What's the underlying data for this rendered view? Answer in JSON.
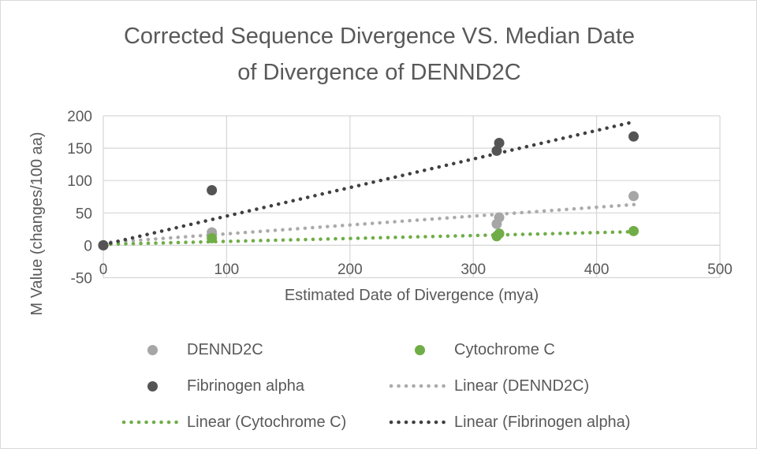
{
  "chart_data": {
    "type": "scatter",
    "title": "Corrected Sequence Divergence VS. Median Date of Divergence of DENND2C",
    "title_lines": [
      "Corrected Sequence Divergence VS. Median Date",
      "of Divergence of DENND2C"
    ],
    "xlabel": "Estimated Date of Divergence (mya)",
    "ylabel": "M Value (changes/100 aa)",
    "xlim": [
      0,
      500
    ],
    "ylim": [
      -50,
      200
    ],
    "x_ticks": [
      0,
      100,
      200,
      300,
      400,
      500
    ],
    "y_ticks": [
      -50,
      0,
      50,
      100,
      150,
      200
    ],
    "grid": true,
    "legend_position": "bottom",
    "series": [
      {
        "name": "DENND2C",
        "color": "#a6a6a6",
        "points": [
          [
            0,
            0
          ],
          [
            88,
            20
          ],
          [
            319,
            33
          ],
          [
            321,
            43
          ],
          [
            430,
            76
          ]
        ]
      },
      {
        "name": "Cytochrome C",
        "color": "#70ad47",
        "points": [
          [
            0,
            0
          ],
          [
            88,
            11
          ],
          [
            319,
            14
          ],
          [
            321,
            18
          ],
          [
            430,
            22
          ]
        ]
      },
      {
        "name": "Fibrinogen alpha",
        "color": "#545454",
        "points": [
          [
            0,
            0
          ],
          [
            88,
            85
          ],
          [
            319,
            146
          ],
          [
            321,
            158
          ],
          [
            430,
            168
          ]
        ]
      }
    ],
    "trendlines": [
      {
        "name": "Linear (DENND2C)",
        "color": "#ababab",
        "from": [
          0,
          4
        ],
        "to": [
          431,
          63
        ]
      },
      {
        "name": "Linear (Cytochrome C)",
        "color": "#70ad47",
        "from": [
          0,
          1.5
        ],
        "to": [
          431,
          21
        ]
      },
      {
        "name": "Linear (Fibrinogen alpha)",
        "color": "#404040",
        "from": [
          0,
          1
        ],
        "to": [
          431,
          191
        ]
      }
    ]
  },
  "legend": {
    "items": [
      {
        "label": "DENND2C",
        "color": "#a6a6a6",
        "marker": "dot"
      },
      {
        "label": "Cytochrome C",
        "color": "#70ad47",
        "marker": "dot"
      },
      {
        "label": "Fibrinogen alpha",
        "color": "#545454",
        "marker": "dot"
      },
      {
        "label": "Linear (DENND2C)",
        "color": "#ababab",
        "marker": "dotted-line"
      },
      {
        "label": "Linear (Cytochrome C)",
        "color": "#70ad47",
        "marker": "dotted-line"
      },
      {
        "label": "Linear (Fibrinogen alpha)",
        "color": "#404040",
        "marker": "dotted-line"
      }
    ]
  },
  "colors": {
    "text": "#595959",
    "gridline": "#d6d6d6",
    "background": "#ffffff",
    "border": "#d9d9d9"
  }
}
